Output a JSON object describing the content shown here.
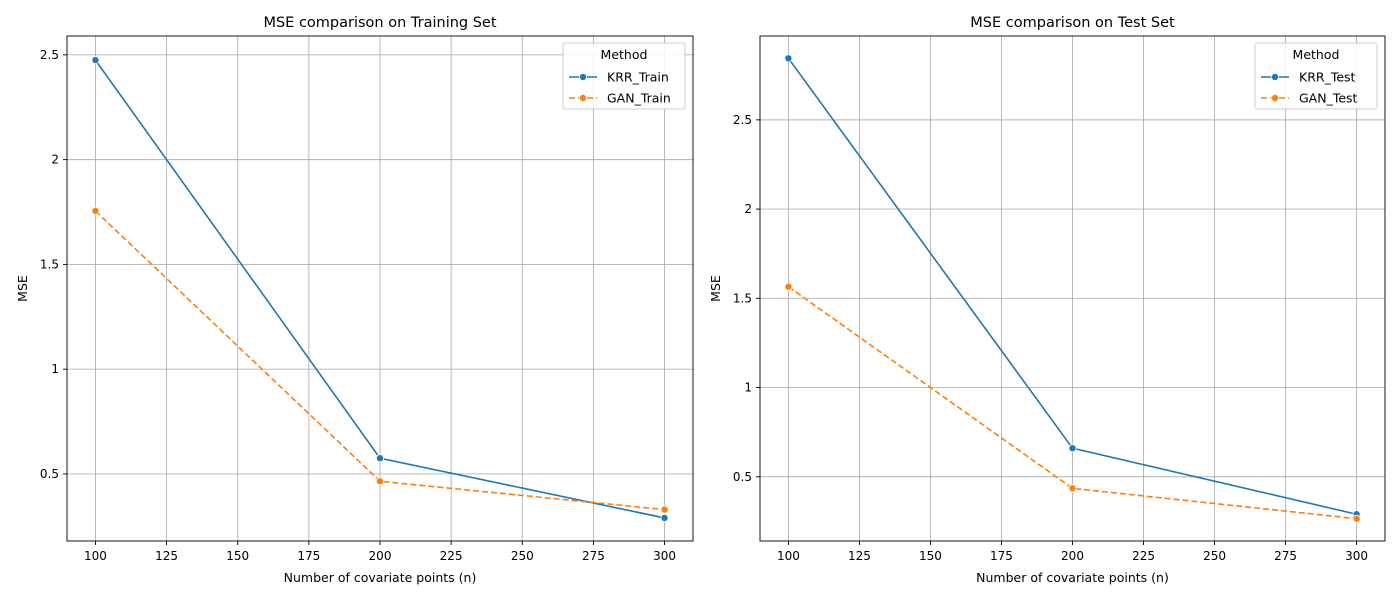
{
  "chart_data": [
    {
      "type": "line",
      "title": "MSE comparison on Training Set",
      "xlabel": "Number of covariate points (n)",
      "ylabel": "MSE",
      "x": [
        100,
        200,
        300
      ],
      "xlim": [
        90,
        310
      ],
      "ylim": [
        0.18,
        2.59
      ],
      "xticks": [
        100,
        125,
        150,
        175,
        200,
        225,
        250,
        275,
        300
      ],
      "yticks": [
        0.5,
        1.0,
        1.5,
        2.0,
        2.5
      ],
      "grid": true,
      "legend": {
        "title": "Method",
        "placement": "top-right"
      },
      "series": [
        {
          "name": "KRR_Train",
          "values": [
            2.475,
            0.575,
            0.29
          ],
          "color": "#1f77b4",
          "dash": "solid"
        },
        {
          "name": "GAN_Train",
          "values": [
            1.755,
            0.465,
            0.33
          ],
          "color": "#ff7f0e",
          "dash": "dashed"
        }
      ]
    },
    {
      "type": "line",
      "title": "MSE comparison on Test Set",
      "xlabel": "Number of covariate points (n)",
      "ylabel": "MSE",
      "x": [
        100,
        200,
        300
      ],
      "xlim": [
        90,
        310
      ],
      "ylim": [
        0.14,
        2.97
      ],
      "xticks": [
        100,
        125,
        150,
        175,
        200,
        225,
        250,
        275,
        300
      ],
      "yticks": [
        0.5,
        1.0,
        1.5,
        2.0,
        2.5
      ],
      "grid": true,
      "legend": {
        "title": "Method",
        "placement": "top-right"
      },
      "series": [
        {
          "name": "KRR_Test",
          "values": [
            2.845,
            0.66,
            0.29
          ],
          "color": "#1f77b4",
          "dash": "solid"
        },
        {
          "name": "GAN_Test",
          "values": [
            1.565,
            0.435,
            0.265
          ],
          "color": "#ff7f0e",
          "dash": "dashed"
        }
      ]
    }
  ]
}
